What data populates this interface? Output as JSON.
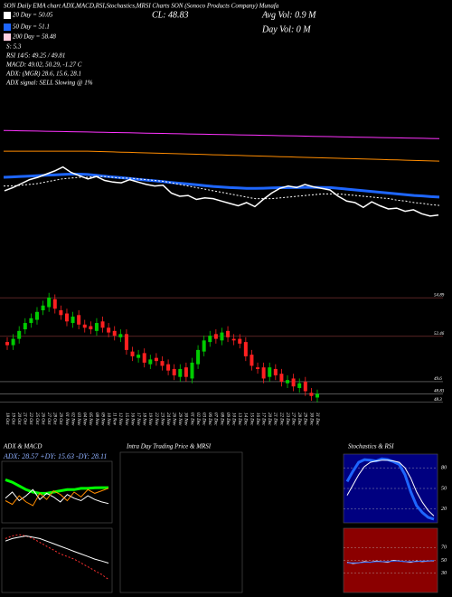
{
  "header": {
    "title": "SON Daily EMA chart ADX,MACD,RSI,Stochastics,MRSI Charts SON (Sonoco Products Company) Munafa"
  },
  "stats": [
    {
      "text": "20 Day = 50.05",
      "color": "#ffffff"
    },
    {
      "text": "50 Day = 51.1",
      "color": "#1e66ff"
    },
    {
      "text": "200 Day = 58.48",
      "color": "#ffd0e0"
    },
    {
      "text": "S: 5.3"
    },
    {
      "text": "RSI 14/5: 49.25 / 49.81"
    },
    {
      "text": "MACD: 49.02, 50.29, -1.27 C"
    },
    {
      "text": "ADX: (MGR) 28.6, 15.6, 28.1"
    },
    {
      "text": "ADX signal: SELL Slowing @ 1%"
    },
    {
      "text": "CL: 48.83"
    },
    {
      "text": "Avg Vol: 0.9 M"
    },
    {
      "text": "Day Vol: 0 M"
    }
  ],
  "chart_data": [
    {
      "type": "line",
      "ylim": [
        48,
        60
      ],
      "series": [
        {
          "color": "#ff33ff",
          "values": [
            59.52,
            59.5,
            59.48,
            59.46,
            59.44,
            59.42,
            59.4,
            59.38,
            59.36,
            59.34,
            59.32,
            59.3,
            59.28,
            59.26,
            59.24,
            59.22,
            59.2,
            59.18,
            59.16,
            59.14,
            59.12,
            59.1,
            59.08,
            59.06,
            59.04,
            59.02,
            59.0,
            58.98,
            58.96,
            58.94,
            58.92,
            58.9,
            58.88,
            58.86,
            58.84,
            58.82,
            58.8,
            58.78,
            58.76,
            58.74,
            58.72,
            58.7,
            58.68,
            58.66,
            58.64,
            58.62,
            58.6,
            58.58,
            58.56,
            58.54,
            58.52,
            58.5,
            58.48
          ]
        },
        {
          "color": "#ff8c00",
          "values": [
            56.9,
            56.9,
            56.9,
            56.9,
            56.9,
            56.9,
            56.9,
            56.9,
            56.9,
            56.9,
            56.9,
            56.87,
            56.84,
            56.81,
            56.78,
            56.75,
            56.72,
            56.69,
            56.66,
            56.63,
            56.6,
            56.57,
            56.54,
            56.51,
            56.48,
            56.45,
            56.42,
            56.39,
            56.36,
            56.33,
            56.3,
            56.27,
            56.24,
            56.21,
            56.18,
            56.15,
            56.12,
            56.09,
            56.06,
            56.03,
            56.0,
            55.97,
            55.94,
            55.91,
            55.88,
            55.85,
            55.82,
            55.79,
            55.76,
            55.73,
            55.7,
            55.67,
            55.64
          ]
        },
        {
          "color": "#1e66ff",
          "width": 3,
          "values": [
            53.6,
            53.65,
            53.7,
            53.75,
            53.8,
            53.85,
            53.9,
            53.95,
            54.0,
            54.0,
            53.95,
            53.85,
            53.75,
            53.65,
            53.55,
            53.45,
            53.35,
            53.25,
            53.15,
            53.05,
            52.95,
            52.85,
            52.75,
            52.65,
            52.55,
            52.45,
            52.38,
            52.3,
            52.25,
            52.2,
            52.2,
            52.22,
            52.25,
            52.28,
            52.3,
            52.32,
            52.33,
            52.33,
            52.32,
            52.3,
            52.2,
            52.1,
            52.0,
            51.9,
            51.8,
            51.7,
            51.6,
            51.5,
            51.4,
            51.3,
            51.25,
            51.15,
            51.1
          ]
        },
        {
          "color": "#ffffff",
          "dash": true,
          "values": [
            52.5,
            52.5,
            52.6,
            52.7,
            52.8,
            53.0,
            53.2,
            53.4,
            53.5,
            53.6,
            53.6,
            53.7,
            53.7,
            53.6,
            53.5,
            53.5,
            53.4,
            53.3,
            53.2,
            53.1,
            52.9,
            52.7,
            52.5,
            52.3,
            52.1,
            51.9,
            51.7,
            51.5,
            51.3,
            51.1,
            50.9,
            50.9,
            50.9,
            51.0,
            51.1,
            51.2,
            51.3,
            51.4,
            51.5,
            51.5,
            51.5,
            51.4,
            51.3,
            51.2,
            51.1,
            51.0,
            50.9,
            50.7,
            50.6,
            50.4,
            50.3,
            50.15,
            50.05
          ]
        }
      ]
    },
    {
      "type": "candlestick",
      "ylim": [
        48,
        55.3
      ],
      "yticks": [
        54.89,
        52.46,
        49.6,
        48.83,
        48.3
      ],
      "grid_color": "#8b3a3a",
      "up_color": "#00cc00",
      "down_color": "#ff2020",
      "categories": [
        "18 Oct",
        "19 Oct",
        "20 Oct",
        "21 Oct",
        "22 Oct",
        "25 Oct",
        "26 Oct",
        "27 Oct",
        "28 Oct",
        "29 Oct",
        "01 Nov",
        "02 Nov",
        "03 Nov",
        "04 Nov",
        "05 Nov",
        "08 Nov",
        "09 Nov",
        "10 Nov",
        "11 Nov",
        "12 Nov",
        "15 Nov",
        "16 Nov",
        "17 Nov",
        "18 Nov",
        "19 Nov",
        "22 Nov",
        "23 Nov",
        "24 Nov",
        "26 Nov",
        "29 Nov",
        "30 Nov",
        "01 Dec",
        "02 Dec",
        "03 Dec",
        "06 Dec",
        "07 Dec",
        "08 Dec",
        "09 Dec",
        "10 Dec",
        "13 Dec",
        "14 Dec",
        "15 Dec",
        "16 Dec",
        "17 Dec",
        "20 Dec",
        "21 Dec",
        "22 Dec",
        "23 Dec",
        "27 Dec",
        "28 Dec",
        "29 Dec",
        "30 Dec",
        "31 Dec"
      ],
      "open": [
        52.1,
        51.9,
        52.3,
        52.9,
        53.3,
        53.5,
        54.1,
        54.3,
        54.8,
        54.1,
        53.9,
        53.3,
        53.8,
        53.2,
        53.1,
        52.8,
        53.4,
        53.0,
        52.8,
        52.4,
        52.6,
        51.5,
        51.1,
        51.4,
        50.7,
        51.1,
        50.9,
        50.7,
        50.4,
        49.9,
        50.5,
        49.8,
        50.7,
        51.5,
        52.1,
        52.6,
        52.2,
        52.8,
        52.3,
        52.3,
        52.1,
        51.3,
        50.5,
        50.5,
        49.9,
        50.4,
        50.1,
        49.5,
        49.8,
        49.2,
        49.6,
        48.9,
        48.6
      ],
      "high": [
        52.4,
        52.6,
        53.1,
        53.6,
        53.9,
        54.3,
        54.7,
        55.2,
        55.1,
        54.4,
        54.2,
        54.0,
        54.1,
        53.5,
        53.4,
        53.6,
        53.7,
        53.3,
        53.1,
        52.9,
        52.9,
        51.8,
        51.6,
        51.7,
        51.3,
        51.4,
        51.2,
        51.0,
        50.7,
        50.7,
        50.8,
        51.1,
        51.9,
        52.5,
        52.8,
        52.9,
        53.0,
        53.1,
        52.6,
        52.6,
        52.4,
        51.6,
        50.8,
        50.8,
        50.8,
        50.7,
        50.4,
        50.0,
        50.1,
        49.8,
        49.9,
        49.2,
        49.1
      ],
      "low": [
        51.6,
        51.6,
        52.0,
        52.6,
        53.0,
        53.2,
        53.8,
        54.0,
        53.9,
        53.5,
        53.1,
        53.0,
        52.9,
        52.7,
        52.6,
        52.5,
        52.7,
        52.4,
        52.2,
        52.1,
        51.3,
        50.9,
        50.8,
        50.5,
        50.4,
        50.6,
        50.3,
        50.0,
        49.7,
        49.6,
        49.6,
        49.5,
        50.4,
        51.2,
        51.8,
        52.0,
        51.9,
        52.1,
        51.9,
        51.7,
        50.9,
        50.3,
        50.1,
        49.5,
        49.6,
        49.7,
        49.3,
        49.2,
        49.0,
        48.9,
        48.7,
        48.4,
        48.3
      ],
      "close": [
        51.9,
        52.3,
        52.8,
        53.3,
        53.6,
        54.0,
        54.4,
        54.9,
        54.2,
        53.8,
        53.4,
        53.7,
        53.2,
        53.0,
        52.9,
        53.3,
        53.0,
        52.7,
        52.5,
        52.6,
        51.6,
        51.2,
        51.3,
        50.8,
        51.0,
        50.9,
        50.6,
        50.3,
        50.0,
        50.4,
        49.9,
        50.8,
        51.6,
        52.2,
        52.5,
        52.3,
        52.7,
        52.4,
        52.2,
        52.0,
        51.2,
        50.6,
        50.4,
        49.8,
        50.5,
        50.0,
        49.6,
        49.7,
        49.3,
        49.5,
        49.0,
        48.7,
        48.83
      ]
    },
    {
      "type": "line",
      "title": "ADX & MACD",
      "subtitle": "ADX: 28.57 +DY: 15.63 -DY: 28.11",
      "ylim": [
        0,
        50
      ],
      "series": [
        {
          "color": "#00ff00",
          "width": 3,
          "values": [
            35,
            33,
            30,
            27,
            25,
            24,
            24,
            25,
            26,
            27,
            27,
            28,
            28,
            28.5,
            28.6,
            28.57
          ]
        },
        {
          "color": "#ffffff",
          "values": [
            20,
            25,
            18,
            22,
            27,
            19,
            24,
            21,
            17,
            23,
            20,
            18,
            22,
            19,
            17,
            15.63
          ]
        },
        {
          "color": "#ff8c00",
          "values": [
            18,
            15,
            22,
            17,
            14,
            24,
            19,
            26,
            23,
            18,
            25,
            21,
            27,
            24,
            26,
            28.11
          ]
        }
      ]
    },
    {
      "type": "line",
      "ylim": [
        48,
        53
      ],
      "series": [
        {
          "color": "#ff3030",
          "dash": true,
          "values": [
            52.2,
            52.4,
            52.5,
            52.4,
            52.2,
            51.9,
            51.6,
            51.3,
            51.0,
            50.8,
            50.6,
            50.3,
            50.0,
            49.7,
            49.4,
            49.02
          ]
        },
        {
          "color": "#ffffff",
          "values": [
            52.0,
            52.2,
            52.3,
            52.4,
            52.3,
            52.2,
            52.0,
            51.8,
            51.6,
            51.4,
            51.2,
            51.0,
            50.8,
            50.6,
            50.45,
            50.29
          ]
        }
      ]
    },
    {
      "type": "blank",
      "title": "Intra Day Trading Price & MRSI"
    },
    {
      "type": "line",
      "title": "Stochastics & RSI",
      "ylim": [
        0,
        100
      ],
      "yticks": [
        20,
        50,
        80
      ],
      "background": "#000080",
      "series": [
        {
          "color": "#1e66ff",
          "width": 3,
          "values": [
            60,
            75,
            88,
            92,
            91,
            90,
            93,
            92,
            89,
            85,
            70,
            45,
            25,
            15,
            8,
            5.3
          ]
        },
        {
          "color": "#ffffff",
          "values": [
            40,
            55,
            70,
            82,
            88,
            90,
            91,
            91,
            90,
            88,
            80,
            65,
            45,
            30,
            18,
            10
          ]
        }
      ]
    },
    {
      "type": "line",
      "ylim": [
        0,
        100
      ],
      "yticks": [
        30,
        50,
        70
      ],
      "background": "#8b0000",
      "series": [
        {
          "color": "#ffffff",
          "values": [
            47,
            45,
            46,
            48,
            47,
            49,
            48,
            47,
            50,
            49,
            48,
            47,
            49,
            48,
            49,
            49.25
          ]
        },
        {
          "color": "#1e66ff",
          "values": [
            46,
            46,
            46,
            47,
            47,
            48,
            48,
            48,
            49,
            49,
            48,
            48,
            48,
            49,
            49,
            49.81
          ]
        }
      ]
    }
  ]
}
